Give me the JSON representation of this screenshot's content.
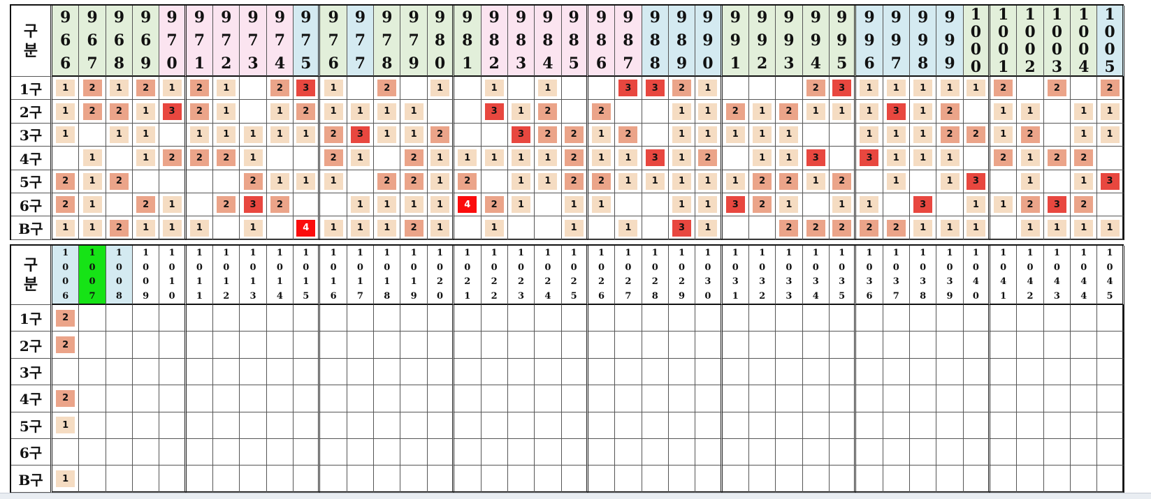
{
  "corner_label": "구\n분",
  "row_labels": [
    "1구",
    "2구",
    "3구",
    "4구",
    "5구",
    "6구",
    "B구"
  ],
  "colors": {
    "header_green": "#e2efda",
    "header_pink": "#fbe4f0",
    "header_blue": "#d4eaf1",
    "header_highlight": "#16e316",
    "v1": "#f5dcc2",
    "v2": "#eba489",
    "v3": "#e8473f",
    "v4": "#fb0c0c"
  },
  "table1": {
    "headers": [
      "966",
      "967",
      "968",
      "969",
      "970",
      "971",
      "972",
      "973",
      "974",
      "975",
      "976",
      "977",
      "978",
      "979",
      "980",
      "981",
      "982",
      "983",
      "984",
      "985",
      "986",
      "987",
      "988",
      "989",
      "990",
      "991",
      "992",
      "993",
      "994",
      "995",
      "996",
      "997",
      "998",
      "999",
      "1000",
      "1001",
      "1002",
      "1003",
      "1004",
      "1005"
    ],
    "header_colors": [
      "g",
      "g",
      "g",
      "g",
      "p",
      "p",
      "p",
      "p",
      "p",
      "b",
      "g",
      "b",
      "g",
      "g",
      "g",
      "g",
      "p",
      "p",
      "p",
      "p",
      "p",
      "p",
      "b",
      "b",
      "b",
      "g",
      "g",
      "g",
      "g",
      "g",
      "b",
      "b",
      "b",
      "b",
      "g",
      "g",
      "g",
      "g",
      "g",
      "b"
    ],
    "rows": [
      [
        "1",
        "2",
        "1",
        "2",
        "1",
        "2",
        "1",
        "",
        "2",
        "3",
        "1",
        "",
        "2",
        "",
        "1",
        "",
        "1",
        "",
        "1",
        "",
        "",
        "3",
        "3",
        "2",
        "1",
        "",
        "",
        "",
        "2",
        "3",
        "1",
        "1",
        "1",
        "1",
        "1",
        "2",
        "",
        "2",
        "",
        "2"
      ],
      [
        "1",
        "2",
        "2",
        "1",
        "3",
        "2",
        "1",
        "",
        "1",
        "2",
        "1",
        "1",
        "1",
        "1",
        "",
        "",
        "3",
        "1",
        "2",
        "",
        "2",
        "",
        "",
        "1",
        "1",
        "2",
        "1",
        "2",
        "1",
        "1",
        "1",
        "3",
        "1",
        "2",
        "",
        "1",
        "1",
        "",
        "1",
        "1"
      ],
      [
        "1",
        "",
        "1",
        "1",
        "",
        "1",
        "1",
        "1",
        "1",
        "1",
        "2",
        "3",
        "1",
        "1",
        "2",
        "",
        "",
        "3",
        "2",
        "2",
        "1",
        "2",
        "",
        "1",
        "1",
        "1",
        "1",
        "1",
        "",
        "",
        "1",
        "1",
        "1",
        "2",
        "2",
        "1",
        "2",
        "",
        "1",
        "1"
      ],
      [
        "",
        "1",
        "",
        "1",
        "2",
        "2",
        "2",
        "1",
        "",
        "",
        "2",
        "1",
        "",
        "2",
        "1",
        "1",
        "1",
        "1",
        "1",
        "2",
        "1",
        "1",
        "3",
        "1",
        "2",
        "",
        "1",
        "1",
        "3",
        "",
        "3",
        "1",
        "1",
        "1",
        "",
        "2",
        "1",
        "2",
        "2",
        ""
      ],
      [
        "2",
        "1",
        "2",
        "",
        "",
        "",
        "",
        "2",
        "1",
        "1",
        "1",
        "",
        "2",
        "2",
        "1",
        "2",
        "",
        "1",
        "1",
        "2",
        "2",
        "1",
        "1",
        "1",
        "1",
        "1",
        "2",
        "2",
        "1",
        "2",
        "",
        "1",
        "",
        "1",
        "3",
        "",
        "1",
        "",
        "1",
        "3"
      ],
      [
        "2",
        "1",
        "",
        "2",
        "1",
        "",
        "2",
        "3",
        "2",
        "",
        "",
        "1",
        "1",
        "1",
        "1",
        "4",
        "2",
        "1",
        "",
        "1",
        "1",
        "",
        "",
        "1",
        "1",
        "3",
        "2",
        "1",
        "",
        "1",
        "1",
        "",
        "3",
        "",
        "1",
        "1",
        "2",
        "3",
        "2",
        ""
      ],
      [
        "1",
        "1",
        "2",
        "1",
        "1",
        "1",
        "",
        "1",
        "",
        "4",
        "1",
        "1",
        "1",
        "2",
        "1",
        "",
        "1",
        "",
        "",
        "1",
        "",
        "1",
        "",
        "3",
        "1",
        "",
        "",
        "2",
        "2",
        "2",
        "2",
        "2",
        "1",
        "1",
        "1",
        "",
        "1",
        "1",
        "1",
        "1"
      ]
    ]
  },
  "table2": {
    "headers": [
      "1006",
      "1007",
      "1008",
      "1009",
      "1010",
      "1011",
      "1012",
      "1013",
      "1014",
      "1015",
      "1016",
      "1017",
      "1018",
      "1019",
      "1020",
      "1021",
      "1022",
      "1023",
      "1024",
      "1025",
      "1026",
      "1027",
      "1028",
      "1029",
      "1030",
      "1031",
      "1032",
      "1033",
      "1034",
      "1035",
      "1036",
      "1037",
      "1038",
      "1039",
      "1040",
      "1041",
      "1042",
      "1043",
      "1044",
      "1045"
    ],
    "header_colors": [
      "b",
      "h",
      "b",
      "w",
      "w",
      "w",
      "w",
      "w",
      "w",
      "w",
      "w",
      "w",
      "w",
      "w",
      "w",
      "w",
      "w",
      "w",
      "w",
      "w",
      "w",
      "w",
      "w",
      "w",
      "w",
      "w",
      "w",
      "w",
      "w",
      "w",
      "w",
      "w",
      "w",
      "w",
      "w",
      "w",
      "w",
      "w",
      "w",
      "w"
    ],
    "rows": [
      [
        "2",
        "",
        "",
        "",
        "",
        "",
        "",
        "",
        "",
        "",
        "",
        "",
        "",
        "",
        "",
        "",
        "",
        "",
        "",
        "",
        "",
        "",
        "",
        "",
        "",
        "",
        "",
        "",
        "",
        "",
        "",
        "",
        "",
        "",
        "",
        "",
        "",
        "",
        "",
        ""
      ],
      [
        "2",
        "",
        "",
        "",
        "",
        "",
        "",
        "",
        "",
        "",
        "",
        "",
        "",
        "",
        "",
        "",
        "",
        "",
        "",
        "",
        "",
        "",
        "",
        "",
        "",
        "",
        "",
        "",
        "",
        "",
        "",
        "",
        "",
        "",
        "",
        "",
        "",
        "",
        "",
        ""
      ],
      [
        "",
        "",
        "",
        "",
        "",
        "",
        "",
        "",
        "",
        "",
        "",
        "",
        "",
        "",
        "",
        "",
        "",
        "",
        "",
        "",
        "",
        "",
        "",
        "",
        "",
        "",
        "",
        "",
        "",
        "",
        "",
        "",
        "",
        "",
        "",
        "",
        "",
        "",
        "",
        ""
      ],
      [
        "2",
        "",
        "",
        "",
        "",
        "",
        "",
        "",
        "",
        "",
        "",
        "",
        "",
        "",
        "",
        "",
        "",
        "",
        "",
        "",
        "",
        "",
        "",
        "",
        "",
        "",
        "",
        "",
        "",
        "",
        "",
        "",
        "",
        "",
        "",
        "",
        "",
        "",
        "",
        ""
      ],
      [
        "1",
        "",
        "",
        "",
        "",
        "",
        "",
        "",
        "",
        "",
        "",
        "",
        "",
        "",
        "",
        "",
        "",
        "",
        "",
        "",
        "",
        "",
        "",
        "",
        "",
        "",
        "",
        "",
        "",
        "",
        "",
        "",
        "",
        "",
        "",
        "",
        "",
        "",
        "",
        ""
      ],
      [
        "",
        "",
        "",
        "",
        "",
        "",
        "",
        "",
        "",
        "",
        "",
        "",
        "",
        "",
        "",
        "",
        "",
        "",
        "",
        "",
        "",
        "",
        "",
        "",
        "",
        "",
        "",
        "",
        "",
        "",
        "",
        "",
        "",
        "",
        "",
        "",
        "",
        "",
        "",
        ""
      ],
      [
        "1",
        "",
        "",
        "",
        "",
        "",
        "",
        "",
        "",
        "",
        "",
        "",
        "",
        "",
        "",
        "",
        "",
        "",
        "",
        "",
        "",
        "",
        "",
        "",
        "",
        "",
        "",
        "",
        "",
        "",
        "",
        "",
        "",
        "",
        "",
        "",
        "",
        "",
        "",
        ""
      ]
    ]
  }
}
